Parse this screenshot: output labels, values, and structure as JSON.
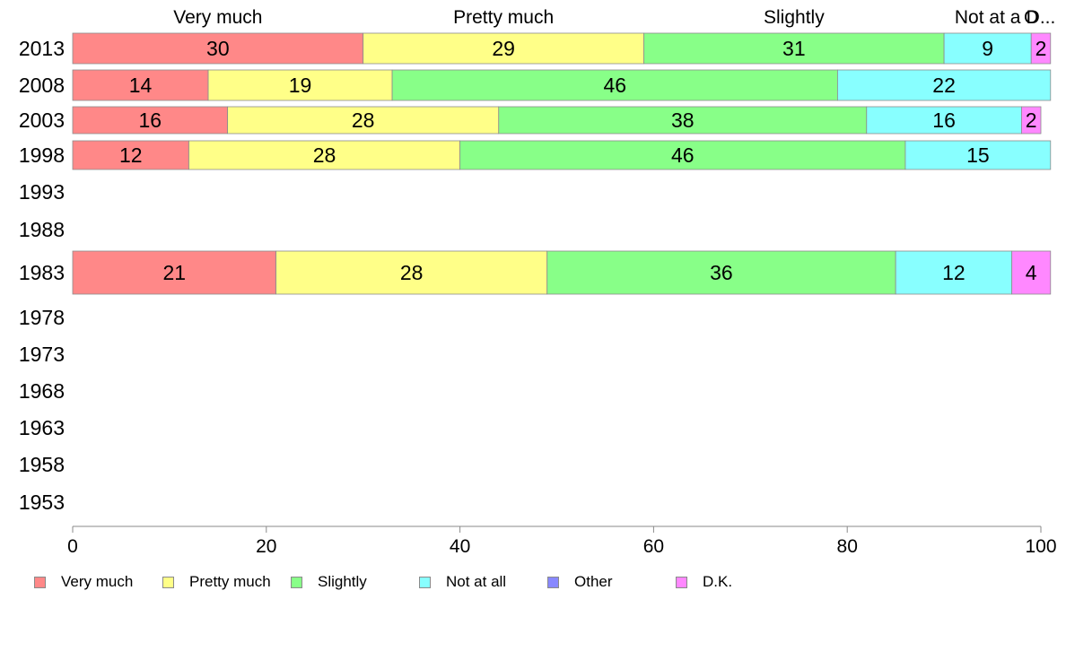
{
  "chart_data": {
    "type": "bar",
    "orientation": "horizontal",
    "stacked": true,
    "categories": [
      "2013",
      "2008",
      "2003",
      "1998",
      "1993",
      "1988",
      "1983",
      "1978",
      "1973",
      "1968",
      "1963",
      "1958",
      "1953"
    ],
    "series": [
      {
        "name": "Very much",
        "color": "#ff8888",
        "values": [
          30,
          14,
          16,
          12,
          null,
          null,
          21,
          null,
          null,
          null,
          null,
          null,
          null
        ]
      },
      {
        "name": "Pretty much",
        "color": "#ffff88",
        "values": [
          29,
          19,
          28,
          28,
          null,
          null,
          28,
          null,
          null,
          null,
          null,
          null,
          null
        ]
      },
      {
        "name": "Slightly",
        "color": "#88ff88",
        "values": [
          31,
          46,
          38,
          46,
          null,
          null,
          36,
          null,
          null,
          null,
          null,
          null,
          null
        ]
      },
      {
        "name": "Not at all",
        "color": "#88ffff",
        "values": [
          9,
          22,
          16,
          15,
          null,
          null,
          12,
          null,
          null,
          null,
          null,
          null,
          null
        ]
      },
      {
        "name": "Other",
        "color": "#8888ff",
        "values": [
          0,
          0,
          0,
          0,
          null,
          null,
          0,
          null,
          null,
          null,
          null,
          null,
          null
        ]
      },
      {
        "name": "D.K.",
        "color": "#ff88ff",
        "values": [
          2,
          0,
          2,
          0,
          null,
          null,
          4,
          null,
          null,
          null,
          null,
          null,
          null
        ]
      }
    ],
    "xlim": [
      0,
      100
    ],
    "xticks": [
      0,
      20,
      40,
      60,
      80,
      100
    ],
    "top_labels": [
      "Very much",
      "Pretty much",
      "Slightly",
      "Not at all",
      "Other",
      "D.K."
    ],
    "top_labels_display": [
      "Very much",
      "Pretty much",
      "Slightly",
      "Not at a",
      "O",
      "D..."
    ],
    "grid": false,
    "legend_position": "bottom"
  }
}
